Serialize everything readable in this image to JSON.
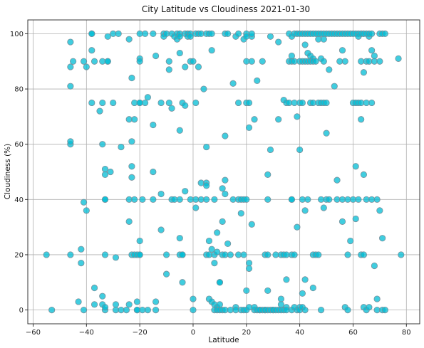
{
  "chart_data": {
    "type": "scatter",
    "title": "City Latitude vs Cloudiness 2021-01-30",
    "xlabel": "Latitude",
    "ylabel": "Cloudiness (%)",
    "xlim": [
      -62,
      85
    ],
    "ylim": [
      -5,
      105
    ],
    "xticks": [
      -60,
      -40,
      -20,
      0,
      20,
      40,
      60,
      80
    ],
    "yticks": [
      0,
      20,
      40,
      60,
      80,
      100
    ],
    "grid": true,
    "marker_color": "#00bcd4",
    "marker_edge_color": "#78909c",
    "points": [
      [
        -55,
        20
      ],
      [
        -53,
        0
      ],
      [
        -46,
        97
      ],
      [
        -46,
        81
      ],
      [
        -46,
        88
      ],
      [
        -45,
        90
      ],
      [
        -46,
        60
      ],
      [
        -46,
        61
      ],
      [
        -46,
        20
      ],
      [
        -43,
        3
      ],
      [
        -42,
        22
      ],
      [
        -42,
        17
      ],
      [
        -41,
        0
      ],
      [
        -41,
        39
      ],
      [
        -41,
        90
      ],
      [
        -40,
        88
      ],
      [
        -40,
        36
      ],
      [
        -38,
        100
      ],
      [
        -38,
        100
      ],
      [
        -38,
        94
      ],
      [
        -38,
        75
      ],
      [
        -37,
        90
      ],
      [
        -37,
        2
      ],
      [
        -37,
        8
      ],
      [
        -35,
        72
      ],
      [
        -34,
        90
      ],
      [
        -34,
        60
      ],
      [
        -34,
        75
      ],
      [
        -34,
        5
      ],
      [
        -34,
        2
      ],
      [
        -33,
        51
      ],
      [
        -33,
        49
      ],
      [
        -33,
        40
      ],
      [
        -33,
        40
      ],
      [
        -33,
        20
      ],
      [
        -33,
        0
      ],
      [
        -33,
        1
      ],
      [
        -32,
        99
      ],
      [
        -32,
        90
      ],
      [
        -32,
        90
      ],
      [
        -31,
        50
      ],
      [
        -30,
        100
      ],
      [
        -30,
        75
      ],
      [
        -29,
        19
      ],
      [
        -29,
        0
      ],
      [
        -29,
        2
      ],
      [
        -28,
        100
      ],
      [
        -27,
        59
      ],
      [
        -27,
        0
      ],
      [
        -25,
        0
      ],
      [
        -24,
        98
      ],
      [
        -24,
        69
      ],
      [
        -24,
        40
      ],
      [
        -24,
        32
      ],
      [
        -24,
        2
      ],
      [
        -23,
        84
      ],
      [
        -23,
        61
      ],
      [
        -23,
        52
      ],
      [
        -23,
        48
      ],
      [
        -23,
        20
      ],
      [
        -22,
        75
      ],
      [
        -22,
        69
      ],
      [
        -22,
        40
      ],
      [
        -22,
        20
      ],
      [
        -21,
        20
      ],
      [
        -21,
        3
      ],
      [
        -21,
        0
      ],
      [
        -21,
        0
      ],
      [
        -20,
        100
      ],
      [
        -20,
        91
      ],
      [
        -20,
        90
      ],
      [
        -20,
        75
      ],
      [
        -20,
        75
      ],
      [
        -20,
        25
      ],
      [
        -20,
        20
      ],
      [
        -20,
        20
      ],
      [
        -19,
        40
      ],
      [
        -19,
        0
      ],
      [
        -18,
        100
      ],
      [
        -18,
        75
      ],
      [
        -17,
        77
      ],
      [
        -17,
        0
      ],
      [
        -15,
        100
      ],
      [
        -15,
        67
      ],
      [
        -15,
        50
      ],
      [
        -15,
        40
      ],
      [
        -14,
        92
      ],
      [
        -14,
        3
      ],
      [
        -14,
        0
      ],
      [
        -12,
        75
      ],
      [
        -12,
        29
      ],
      [
        -12,
        42
      ],
      [
        -11,
        100
      ],
      [
        -11,
        99
      ],
      [
        -10,
        100
      ],
      [
        -10,
        20
      ],
      [
        -10,
        13
      ],
      [
        -9,
        90
      ],
      [
        -9,
        87
      ],
      [
        -9,
        75
      ],
      [
        -8,
        100
      ],
      [
        -8,
        73
      ],
      [
        -8,
        40
      ],
      [
        -7,
        99
      ],
      [
        -7,
        40
      ],
      [
        -6,
        100
      ],
      [
        -6,
        98
      ],
      [
        -5,
        100
      ],
      [
        -5,
        99
      ],
      [
        -5,
        93
      ],
      [
        -5,
        65
      ],
      [
        -5,
        40
      ],
      [
        -5,
        26
      ],
      [
        -5,
        20
      ],
      [
        -4,
        20
      ],
      [
        -4,
        75
      ],
      [
        -4,
        20
      ],
      [
        -4,
        10
      ],
      [
        -3,
        100
      ],
      [
        -3,
        74
      ],
      [
        -3,
        43
      ],
      [
        -3,
        88
      ],
      [
        -2,
        100
      ],
      [
        -2,
        99
      ],
      [
        -1,
        100
      ],
      [
        -1,
        99
      ],
      [
        -1,
        90
      ],
      [
        -1,
        40
      ],
      [
        0,
        4
      ],
      [
        0,
        0
      ],
      [
        0,
        90
      ],
      [
        1,
        100
      ],
      [
        1,
        75
      ],
      [
        1,
        40
      ],
      [
        1,
        37
      ],
      [
        2,
        100
      ],
      [
        2,
        88
      ],
      [
        3,
        100
      ],
      [
        3,
        46
      ],
      [
        3,
        40
      ],
      [
        4,
        80
      ],
      [
        5,
        100
      ],
      [
        5,
        59
      ],
      [
        5,
        46
      ],
      [
        5,
        45
      ],
      [
        5,
        40
      ],
      [
        5,
        20
      ],
      [
        6,
        100
      ],
      [
        6,
        25
      ],
      [
        6,
        4
      ],
      [
        6,
        20
      ],
      [
        7,
        94
      ],
      [
        7,
        100
      ],
      [
        7,
        22
      ],
      [
        7,
        3
      ],
      [
        8,
        40
      ],
      [
        8,
        20
      ],
      [
        8,
        17
      ],
      [
        8,
        2
      ],
      [
        8,
        0
      ],
      [
        9,
        28
      ],
      [
        9,
        21
      ],
      [
        9,
        1
      ],
      [
        9,
        0
      ],
      [
        10,
        10
      ],
      [
        10,
        2
      ],
      [
        10,
        0
      ],
      [
        10,
        10
      ],
      [
        11,
        44
      ],
      [
        11,
        32
      ],
      [
        11,
        20
      ],
      [
        11,
        0
      ],
      [
        12,
        100
      ],
      [
        12,
        47
      ],
      [
        12,
        63
      ],
      [
        12,
        42
      ],
      [
        12,
        20
      ],
      [
        12,
        0
      ],
      [
        13,
        100
      ],
      [
        13,
        24
      ],
      [
        14,
        20
      ],
      [
        14,
        0
      ],
      [
        15,
        40
      ],
      [
        15,
        82
      ],
      [
        16,
        99
      ],
      [
        16,
        1
      ],
      [
        16,
        0
      ],
      [
        17,
        100
      ],
      [
        17,
        40
      ],
      [
        17,
        75
      ],
      [
        17,
        20
      ],
      [
        18,
        35
      ],
      [
        18,
        40
      ],
      [
        18,
        0
      ],
      [
        19,
        98
      ],
      [
        19,
        40
      ],
      [
        19,
        20
      ],
      [
        19,
        0
      ],
      [
        20,
        90
      ],
      [
        20,
        100
      ],
      [
        20,
        99
      ],
      [
        20,
        75
      ],
      [
        20,
        40
      ],
      [
        20,
        7
      ],
      [
        20,
        0
      ],
      [
        21,
        75
      ],
      [
        21,
        66
      ],
      [
        21,
        17
      ],
      [
        21,
        15
      ],
      [
        21,
        1
      ],
      [
        22,
        99
      ],
      [
        22,
        31
      ],
      [
        22,
        100
      ],
      [
        22,
        90
      ],
      [
        23,
        69
      ],
      [
        23,
        0
      ],
      [
        23,
        1
      ],
      [
        24,
        0
      ],
      [
        24,
        83
      ],
      [
        25,
        0
      ],
      [
        25,
        0
      ],
      [
        26,
        90
      ],
      [
        26,
        0
      ],
      [
        27,
        0
      ],
      [
        27,
        20
      ],
      [
        27,
        0
      ],
      [
        28,
        49
      ],
      [
        28,
        40
      ],
      [
        28,
        20
      ],
      [
        28,
        7
      ],
      [
        28,
        0
      ],
      [
        29,
        99
      ],
      [
        29,
        58
      ],
      [
        29,
        0
      ],
      [
        30,
        0
      ],
      [
        30,
        0
      ],
      [
        31,
        0
      ],
      [
        31,
        20
      ],
      [
        32,
        97
      ],
      [
        32,
        69
      ],
      [
        32,
        0
      ],
      [
        33,
        0
      ],
      [
        33,
        4
      ],
      [
        33,
        20
      ],
      [
        33,
        2
      ],
      [
        34,
        76
      ],
      [
        34,
        20
      ],
      [
        34,
        0
      ],
      [
        35,
        20
      ],
      [
        35,
        11
      ],
      [
        35,
        1
      ],
      [
        35,
        0
      ],
      [
        35,
        75
      ],
      [
        36,
        90
      ],
      [
        36,
        100
      ],
      [
        36,
        75
      ],
      [
        37,
        99
      ],
      [
        37,
        40
      ],
      [
        37,
        40
      ],
      [
        37,
        92
      ],
      [
        37,
        90
      ],
      [
        37,
        20
      ],
      [
        37,
        0
      ],
      [
        38,
        100
      ],
      [
        38,
        75
      ],
      [
        38,
        90
      ],
      [
        38,
        20
      ],
      [
        38,
        1
      ],
      [
        39,
        100
      ],
      [
        39,
        70
      ],
      [
        39,
        30
      ],
      [
        39,
        0
      ],
      [
        40,
        100
      ],
      [
        40,
        90
      ],
      [
        40,
        75
      ],
      [
        40,
        58
      ],
      [
        40,
        1
      ],
      [
        40,
        0
      ],
      [
        41,
        100
      ],
      [
        41,
        75
      ],
      [
        41,
        90
      ],
      [
        41,
        40
      ],
      [
        41,
        6
      ],
      [
        41,
        1
      ],
      [
        42,
        100
      ],
      [
        42,
        96
      ],
      [
        42,
        90
      ],
      [
        42,
        36
      ],
      [
        42,
        11
      ],
      [
        42,
        0
      ],
      [
        43,
        100
      ],
      [
        43,
        93
      ],
      [
        43,
        90
      ],
      [
        43,
        40
      ],
      [
        44,
        100
      ],
      [
        44,
        92
      ],
      [
        44,
        90
      ],
      [
        44,
        75
      ],
      [
        45,
        100
      ],
      [
        45,
        91
      ],
      [
        45,
        90
      ],
      [
        45,
        75
      ],
      [
        45,
        20
      ],
      [
        45,
        8
      ],
      [
        46,
        100
      ],
      [
        46,
        90
      ],
      [
        46,
        20
      ],
      [
        47,
        100
      ],
      [
        47,
        75
      ],
      [
        47,
        98
      ],
      [
        47,
        20
      ],
      [
        48,
        100
      ],
      [
        48,
        91
      ],
      [
        48,
        75
      ],
      [
        48,
        40
      ],
      [
        48,
        0
      ],
      [
        49,
        100
      ],
      [
        49,
        98
      ],
      [
        49,
        90
      ],
      [
        49,
        75
      ],
      [
        49,
        37
      ],
      [
        50,
        100
      ],
      [
        50,
        75
      ],
      [
        50,
        64
      ],
      [
        50,
        40
      ],
      [
        51,
        100
      ],
      [
        51,
        87
      ],
      [
        51,
        40
      ],
      [
        52,
        100
      ],
      [
        53,
        100
      ],
      [
        53,
        81
      ],
      [
        54,
        100
      ],
      [
        54,
        47
      ],
      [
        54,
        40
      ],
      [
        55,
        100
      ],
      [
        55,
        90
      ],
      [
        56,
        100
      ],
      [
        56,
        94
      ],
      [
        56,
        40
      ],
      [
        56,
        32
      ],
      [
        57,
        100
      ],
      [
        57,
        90
      ],
      [
        57,
        1
      ],
      [
        58,
        100
      ],
      [
        58,
        40
      ],
      [
        58,
        20
      ],
      [
        58,
        0
      ],
      [
        59,
        100
      ],
      [
        59,
        25
      ],
      [
        60,
        100
      ],
      [
        60,
        75
      ],
      [
        60,
        40
      ],
      [
        61,
        100
      ],
      [
        61,
        75
      ],
      [
        61,
        52
      ],
      [
        61,
        33
      ],
      [
        62,
        100
      ],
      [
        62,
        75
      ],
      [
        62,
        99
      ],
      [
        62,
        40
      ],
      [
        63,
        100
      ],
      [
        63,
        75
      ],
      [
        63,
        90
      ],
      [
        63,
        69
      ],
      [
        63,
        20
      ],
      [
        64,
        86
      ],
      [
        64,
        100
      ],
      [
        64,
        49
      ],
      [
        64,
        20
      ],
      [
        64,
        1
      ],
      [
        65,
        100
      ],
      [
        65,
        90
      ],
      [
        65,
        75
      ],
      [
        65,
        40
      ],
      [
        65,
        0
      ],
      [
        66,
        99
      ],
      [
        66,
        90
      ],
      [
        66,
        100
      ],
      [
        66,
        1
      ],
      [
        67,
        100
      ],
      [
        67,
        94
      ],
      [
        67,
        75
      ],
      [
        67,
        40
      ],
      [
        68,
        92
      ],
      [
        68,
        90
      ],
      [
        68,
        16
      ],
      [
        69,
        40
      ],
      [
        69,
        4
      ],
      [
        69,
        0
      ],
      [
        70,
        100
      ],
      [
        70,
        90
      ],
      [
        70,
        36
      ],
      [
        71,
        100
      ],
      [
        71,
        26
      ],
      [
        71,
        0
      ],
      [
        72,
        100
      ],
      [
        72,
        0
      ],
      [
        77,
        91
      ],
      [
        78,
        20
      ]
    ]
  }
}
